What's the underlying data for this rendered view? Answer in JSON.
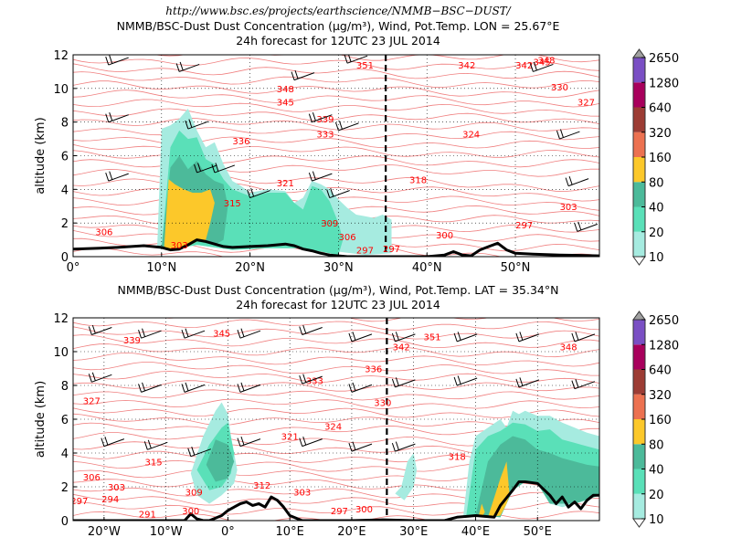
{
  "header": {
    "url": "http://www.bsc.es/projects/earthscience/NMMB−BSC−DUST/"
  },
  "colors": {
    "isentrope": "#f08080",
    "contour_label": "#ff0000",
    "terrain": "#000000",
    "grid": "#000000"
  },
  "colorbar": {
    "levels": [
      "10",
      "20",
      "40",
      "80",
      "160",
      "320",
      "640",
      "1280",
      "2650"
    ],
    "colors": [
      "#a6ebe0",
      "#5ae0b8",
      "#4cba9a",
      "#fcc82a",
      "#ec7150",
      "#9c3c34",
      "#a8005c",
      "#7a4fc4"
    ],
    "extend_max_color": "#a0a0a0",
    "extend_min_color": "#ffffff"
  },
  "chart_data": [
    {
      "type": "heatmap",
      "title": "NMMB/BSC-Dust Dust Concentration (µg/m³), Wind, Pot.Temp. LON = 25.67°E",
      "subtitle": "24h forecast for 12UTC 23 JUL 2014",
      "xlabel": "",
      "ylabel": "altitude (km)",
      "xlim": [
        0,
        59.5
      ],
      "ylim": [
        0,
        12
      ],
      "grid": true,
      "x_ticks": [
        0,
        10,
        20,
        30,
        40,
        50
      ],
      "x_tick_labels": [
        "0°",
        "10°N",
        "20°N",
        "30°N",
        "40°N",
        "50°N"
      ],
      "y_ticks": [
        0,
        2,
        4,
        6,
        8,
        10,
        12
      ],
      "y_tick_labels": [
        "0",
        "2",
        "4",
        "6",
        "8",
        "10",
        "12"
      ],
      "cross_section_marker_x": 35.34,
      "terrain": {
        "x": [
          0,
          3,
          5,
          8,
          10,
          11,
          12,
          13,
          14,
          15,
          16,
          17,
          18,
          20,
          22,
          24,
          25,
          26,
          27,
          28,
          29,
          30,
          31,
          32,
          34,
          36,
          38,
          40,
          42,
          43,
          44,
          45,
          46,
          47,
          48,
          49,
          50,
          52,
          55,
          59.5
        ],
        "y": [
          0.45,
          0.5,
          0.55,
          0.65,
          0.55,
          0.4,
          0.45,
          0.7,
          1.0,
          0.9,
          0.75,
          0.6,
          0.55,
          0.6,
          0.65,
          0.75,
          0.65,
          0.45,
          0.35,
          0.2,
          0.1,
          0.05,
          0.0,
          0.0,
          0.0,
          0.0,
          0.0,
          0.0,
          0.1,
          0.3,
          0.1,
          0.05,
          0.4,
          0.6,
          0.8,
          0.4,
          0.2,
          0.15,
          0.1,
          0.05
        ]
      },
      "dust_regions": [
        {
          "level": "10",
          "x": [
            9.5,
            10,
            11,
            12,
            13,
            14,
            15,
            16,
            17,
            18,
            19,
            20,
            22,
            24,
            25,
            26,
            27,
            28,
            29,
            30,
            31,
            32,
            33,
            34,
            35,
            36,
            36,
            33,
            30,
            26,
            22,
            18,
            14,
            11,
            9.5
          ],
          "y": [
            0.5,
            7.6,
            7.8,
            8.2,
            8.8,
            7.5,
            6.5,
            6.8,
            5.5,
            4.5,
            4.2,
            3.8,
            4.0,
            3.9,
            3.2,
            3.5,
            4.5,
            4.3,
            4.0,
            3.4,
            2.9,
            2.5,
            2.4,
            2.3,
            2.5,
            2.2,
            0.2,
            0.1,
            0.3,
            0.5,
            0.5,
            0.4,
            0.7,
            0.4,
            0.5
          ]
        },
        {
          "level": "20",
          "x": [
            10,
            11,
            12,
            13,
            14,
            15,
            16,
            17,
            18,
            19,
            20,
            22,
            24,
            25,
            26,
            27,
            28,
            29,
            30,
            30.5,
            30,
            26,
            22,
            18,
            14,
            11,
            10
          ],
          "y": [
            0.5,
            6.5,
            7.5,
            7.0,
            7.1,
            5.8,
            5.5,
            4.6,
            4.0,
            3.8,
            3.6,
            3.8,
            3.8,
            3.2,
            2.8,
            4.2,
            4.0,
            3.3,
            2.0,
            1.0,
            0.1,
            0.5,
            0.5,
            0.4,
            0.7,
            0.4,
            0.5
          ]
        },
        {
          "level": "40",
          "x": [
            10,
            11,
            12,
            13,
            14,
            15,
            16,
            17,
            17.5,
            17,
            16,
            14,
            12,
            11,
            10
          ],
          "y": [
            0.5,
            5.3,
            6.0,
            5.2,
            5.7,
            4.9,
            4.5,
            4.3,
            3.0,
            1.0,
            0.7,
            0.9,
            0.6,
            0.4,
            0.5
          ]
        },
        {
          "level": "80",
          "x": [
            10.3,
            10.8,
            11.5,
            12.5,
            13.5,
            14.5,
            15.5,
            16,
            15.5,
            15,
            14,
            13,
            12,
            11,
            10.3
          ],
          "y": [
            0.6,
            4.6,
            4.3,
            4.0,
            3.8,
            3.8,
            4.0,
            3.2,
            2.0,
            1.0,
            0.9,
            0.6,
            0.45,
            0.4,
            0.6
          ]
        }
      ],
      "contour_labels": [
        "306",
        "303",
        "336",
        "315",
        "321",
        "348",
        "345",
        "339",
        "333",
        "351",
        "309",
        "306",
        "297",
        "297",
        "318",
        "324",
        "342",
        "342",
        "345",
        "348",
        "330",
        "327",
        "303",
        "300",
        "297"
      ]
    },
    {
      "type": "heatmap",
      "title": "NMMB/BSC-Dust Dust Concentration (µg/m³), Wind, Pot.Temp. LAT = 35.34°N",
      "subtitle": "24h forecast for 12UTC 23 JUL 2014",
      "xlabel": "",
      "ylabel": "altitude (km)",
      "xlim": [
        -25,
        60
      ],
      "ylim": [
        0,
        12
      ],
      "grid": true,
      "x_ticks": [
        -20,
        -10,
        0,
        10,
        20,
        30,
        40,
        50
      ],
      "x_tick_labels": [
        "20°W",
        "10°W",
        "0°",
        "10°E",
        "20°E",
        "30°E",
        "40°E",
        "50°E"
      ],
      "y_ticks": [
        0,
        2,
        4,
        6,
        8,
        10,
        12
      ],
      "y_tick_labels": [
        "0",
        "2",
        "4",
        "6",
        "8",
        "10",
        "12"
      ],
      "cross_section_marker_x": 25.67,
      "terrain": {
        "x": [
          -25,
          -10,
          -7,
          -6,
          -5,
          -4,
          -3,
          -1,
          0,
          1,
          2,
          3,
          4,
          5,
          6,
          7,
          8,
          9,
          10,
          12,
          20,
          25,
          30,
          35,
          36,
          37,
          40,
          43,
          44,
          46,
          47,
          48,
          50,
          52,
          53,
          54,
          55,
          56,
          57,
          58,
          59,
          60
        ],
        "y": [
          0,
          0,
          0,
          0.4,
          0.1,
          0,
          0,
          0.3,
          0.6,
          0.8,
          1.0,
          1.1,
          0.9,
          1.0,
          0.8,
          1.4,
          1.2,
          0.8,
          0.3,
          0,
          0,
          0.05,
          0,
          0,
          0.1,
          0.2,
          0.3,
          0.2,
          0.9,
          1.8,
          2.3,
          2.3,
          2.2,
          1.5,
          1.0,
          1.4,
          0.8,
          1.1,
          0.7,
          1.2,
          1.5,
          1.5
        ]
      },
      "dust_regions": [
        {
          "level": "10",
          "x": [
            -6,
            -4,
            -2,
            -1,
            0,
            0.5,
            1,
            1.5,
            1,
            -1,
            -3,
            -5,
            -6
          ],
          "y": [
            2.8,
            5.0,
            6.5,
            7.0,
            6.3,
            5.0,
            4.0,
            3.0,
            2.2,
            1.5,
            1.0,
            1.5,
            2.8
          ]
        },
        {
          "level": "10",
          "x": [
            28,
            29,
            30,
            30.5,
            30,
            28.5,
            27,
            28
          ],
          "y": [
            2.0,
            3.5,
            4.0,
            3.0,
            2.0,
            1.2,
            1.6,
            2.0
          ]
        },
        {
          "level": "10",
          "x": [
            38,
            39,
            40,
            42,
            44,
            45,
            46,
            47,
            48,
            50,
            52,
            54,
            56,
            58,
            60,
            60,
            58,
            56,
            54,
            52,
            50,
            48,
            46,
            44,
            40,
            38
          ],
          "y": [
            0.2,
            3.5,
            5.0,
            5.5,
            6.0,
            5.5,
            6.5,
            6.3,
            6.5,
            6.2,
            6.2,
            5.8,
            5.5,
            5.2,
            5.0,
            1.5,
            1.2,
            1.0,
            0.8,
            1.0,
            2.2,
            2.3,
            1.8,
            0.2,
            0.3,
            0.2
          ]
        },
        {
          "level": "20",
          "x": [
            -5,
            -3,
            -1,
            0,
            1,
            0.5,
            -1,
            -3,
            -5
          ],
          "y": [
            3.0,
            4.5,
            5.5,
            5.8,
            4.0,
            2.8,
            2.0,
            1.8,
            3.0
          ]
        },
        {
          "level": "20",
          "x": [
            38.5,
            40,
            42,
            44,
            46,
            48,
            50,
            52,
            54,
            56,
            58,
            60,
            60,
            56,
            52,
            50,
            48,
            46,
            44,
            40,
            38.5
          ],
          "y": [
            0.3,
            4.2,
            5.0,
            5.3,
            5.8,
            5.7,
            5.3,
            5.4,
            4.8,
            4.6,
            4.4,
            4.2,
            1.5,
            1.0,
            1.0,
            2.2,
            2.3,
            1.8,
            0.2,
            0.3,
            0.3
          ]
        },
        {
          "level": "40",
          "x": [
            -3.5,
            -2,
            0,
            1,
            0,
            -2,
            -3.5
          ],
          "y": [
            3.3,
            4.8,
            4.5,
            3.5,
            2.5,
            2.3,
            3.3
          ]
        },
        {
          "level": "40",
          "x": [
            40,
            42,
            44,
            46,
            48,
            50,
            52,
            54,
            56,
            58,
            60,
            60,
            56,
            52,
            50,
            48,
            46,
            44,
            40
          ],
          "y": [
            0.3,
            3.5,
            4.5,
            5.0,
            4.8,
            4.2,
            4.0,
            3.7,
            3.5,
            3.3,
            3.2,
            1.5,
            1.0,
            1.0,
            2.2,
            2.3,
            1.8,
            0.2,
            0.3
          ]
        },
        {
          "level": "80",
          "x": [
            40.5,
            41,
            41.5,
            41,
            40.5
          ],
          "y": [
            0.3,
            1.0,
            0.5,
            0.2,
            0.3
          ]
        },
        {
          "level": "80",
          "x": [
            42,
            44,
            45,
            45.5,
            45,
            44,
            43,
            42
          ],
          "y": [
            0.2,
            2.5,
            3.5,
            1.5,
            1.0,
            0.3,
            0.25,
            0.2
          ]
        }
      ],
      "contour_labels": [
        "339",
        "345",
        "327",
        "315",
        "306",
        "303",
        "294",
        "297",
        "291",
        "300",
        "309",
        "312",
        "303",
        "297",
        "300",
        "321",
        "324",
        "333",
        "336",
        "342",
        "330",
        "351",
        "318",
        "348"
      ]
    }
  ]
}
